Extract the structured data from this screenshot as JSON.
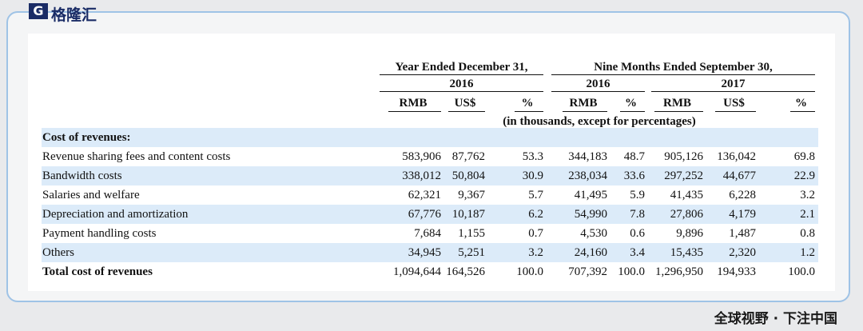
{
  "header": {
    "logo": "格隆汇"
  },
  "table": {
    "group_headers": [
      "Year Ended December 31,",
      "Nine Months Ended September 30,"
    ],
    "year_headers": [
      "2016",
      "2016",
      "2017"
    ],
    "unit_headers": [
      "RMB",
      "US$",
      "%",
      "RMB",
      "%",
      "RMB",
      "US$",
      "%"
    ],
    "note": "(in thousands, except for percentages)",
    "section": "Cost of revenues:",
    "rows": [
      [
        "Revenue sharing fees and content costs",
        "583,906",
        "87,762",
        "53.3",
        "344,183",
        "48.7",
        "905,126",
        "136,042",
        "69.8"
      ],
      [
        "Bandwidth costs",
        "338,012",
        "50,804",
        "30.9",
        "238,034",
        "33.6",
        "297,252",
        "44,677",
        "22.9"
      ],
      [
        "Salaries and welfare",
        "62,321",
        "9,367",
        "5.7",
        "41,495",
        "5.9",
        "41,435",
        "6,228",
        "3.2"
      ],
      [
        "Depreciation and amortization",
        "67,776",
        "10,187",
        "6.2",
        "54,990",
        "7.8",
        "27,806",
        "4,179",
        "2.1"
      ],
      [
        "Payment handling costs",
        "7,684",
        "1,155",
        "0.7",
        "4,530",
        "0.6",
        "9,896",
        "1,487",
        "0.8"
      ],
      [
        "Others",
        "34,945",
        "5,251",
        "3.2",
        "24,160",
        "3.4",
        "15,435",
        "2,320",
        "1.2"
      ],
      [
        "Total cost of revenues",
        "1,094,644",
        "164,526",
        "100.0",
        "707,392",
        "100.0",
        "1,296,950",
        "194,933",
        "100.0"
      ]
    ]
  },
  "footer": "全球视野 · 下注中国"
}
